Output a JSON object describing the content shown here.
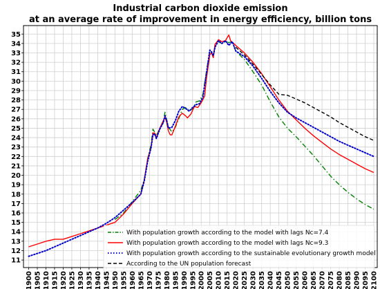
{
  "chart_data": {
    "type": "line",
    "title": [
      "Industrial carbon dioxide emission",
      "at an average rate of improvement in energy efficiency, billion tons"
    ],
    "xlabel": "",
    "ylabel": "",
    "xlim": [
      1897,
      2102
    ],
    "ylim": [
      10.2,
      35.9
    ],
    "x_ticks": [
      1900,
      1905,
      1910,
      1915,
      1920,
      1925,
      1930,
      1935,
      1940,
      1945,
      1950,
      1955,
      1960,
      1965,
      1970,
      1975,
      1980,
      1985,
      1990,
      1995,
      2000,
      2005,
      2010,
      2015,
      2020,
      2025,
      2030,
      2035,
      2040,
      2045,
      2050,
      2055,
      2060,
      2065,
      2070,
      2075,
      2080,
      2085,
      2090,
      2095,
      2100
    ],
    "y_ticks": [
      11,
      12,
      13,
      14,
      15,
      16,
      17,
      18,
      19,
      20,
      21,
      22,
      23,
      24,
      25,
      26,
      27,
      28,
      29,
      30,
      31,
      32,
      33,
      34,
      35
    ],
    "grid": true,
    "legend_position": "bottom-right",
    "series": [
      {
        "name": "With population growth according to the model with lags Nc=7.4",
        "color": "#008000",
        "dash": "dashdot",
        "points": [
          [
            1950,
            15.3
          ],
          [
            1955,
            16.0
          ],
          [
            1960,
            17.2
          ],
          [
            1965,
            18.4
          ],
          [
            1967,
            19.6
          ],
          [
            1969,
            21.8
          ],
          [
            1971,
            23.3
          ],
          [
            1972,
            24.9
          ],
          [
            1973,
            24.6
          ],
          [
            1974,
            24.2
          ],
          [
            1976,
            25.0
          ],
          [
            1978,
            25.6
          ],
          [
            1979,
            26.7
          ],
          [
            1980,
            25.9
          ],
          [
            1981,
            25.1
          ],
          [
            1983,
            24.6
          ],
          [
            1985,
            25.1
          ],
          [
            1987,
            26.0
          ],
          [
            1989,
            27.0
          ],
          [
            1991,
            27.2
          ],
          [
            1993,
            26.9
          ],
          [
            1995,
            27.0
          ],
          [
            1997,
            27.8
          ],
          [
            1999,
            27.9
          ],
          [
            2001,
            28.6
          ],
          [
            2003,
            31.0
          ],
          [
            2005,
            33.2
          ],
          [
            2006,
            33.0
          ],
          [
            2007,
            32.5
          ],
          [
            2008,
            33.8
          ],
          [
            2010,
            34.2
          ],
          [
            2012,
            34.0
          ],
          [
            2014,
            34.2
          ],
          [
            2016,
            34.1
          ],
          [
            2018,
            34.2
          ],
          [
            2020,
            33.2
          ],
          [
            2025,
            32.3
          ],
          [
            2030,
            31.0
          ],
          [
            2035,
            29.6
          ],
          [
            2040,
            27.8
          ],
          [
            2045,
            26.2
          ],
          [
            2050,
            25.0
          ],
          [
            2055,
            24.1
          ],
          [
            2060,
            23.1
          ],
          [
            2065,
            22.1
          ],
          [
            2070,
            21.0
          ],
          [
            2075,
            19.9
          ],
          [
            2080,
            19.0
          ],
          [
            2085,
            18.2
          ],
          [
            2090,
            17.5
          ],
          [
            2095,
            16.9
          ],
          [
            2100,
            16.4
          ]
        ]
      },
      {
        "name": "With population growth according to the model with lags  Nc=9.3",
        "color": "#ff0000",
        "dash": "solid",
        "points": [
          [
            1900,
            12.4
          ],
          [
            1905,
            12.7
          ],
          [
            1910,
            13.0
          ],
          [
            1915,
            13.2
          ],
          [
            1920,
            13.2
          ],
          [
            1925,
            13.5
          ],
          [
            1930,
            13.8
          ],
          [
            1935,
            14.1
          ],
          [
            1940,
            14.4
          ],
          [
            1945,
            14.7
          ],
          [
            1950,
            15.0
          ],
          [
            1955,
            15.9
          ],
          [
            1960,
            17.0
          ],
          [
            1965,
            18.0
          ],
          [
            1967,
            19.5
          ],
          [
            1969,
            21.8
          ],
          [
            1971,
            23.0
          ],
          [
            1972,
            24.5
          ],
          [
            1973,
            24.5
          ],
          [
            1974,
            24.0
          ],
          [
            1976,
            25.0
          ],
          [
            1978,
            25.8
          ],
          [
            1979,
            26.2
          ],
          [
            1980,
            25.6
          ],
          [
            1981,
            24.7
          ],
          [
            1982,
            24.3
          ],
          [
            1983,
            24.3
          ],
          [
            1985,
            25.2
          ],
          [
            1987,
            26.2
          ],
          [
            1989,
            26.6
          ],
          [
            1991,
            26.3
          ],
          [
            1992,
            26.1
          ],
          [
            1994,
            26.5
          ],
          [
            1996,
            27.3
          ],
          [
            1998,
            27.2
          ],
          [
            2000,
            27.7
          ],
          [
            2002,
            28.4
          ],
          [
            2003,
            30.2
          ],
          [
            2005,
            32.8
          ],
          [
            2006,
            33.0
          ],
          [
            2007,
            32.5
          ],
          [
            2008,
            33.9
          ],
          [
            2010,
            34.4
          ],
          [
            2012,
            34.2
          ],
          [
            2014,
            34.3
          ],
          [
            2016,
            34.9
          ],
          [
            2017,
            34.3
          ],
          [
            2020,
            33.8
          ],
          [
            2025,
            33.0
          ],
          [
            2030,
            32.0
          ],
          [
            2035,
            30.8
          ],
          [
            2040,
            29.4
          ],
          [
            2045,
            28.0
          ],
          [
            2050,
            26.8
          ],
          [
            2055,
            25.9
          ],
          [
            2060,
            25.0
          ],
          [
            2065,
            24.2
          ],
          [
            2070,
            23.5
          ],
          [
            2075,
            22.8
          ],
          [
            2080,
            22.2
          ],
          [
            2085,
            21.7
          ],
          [
            2090,
            21.2
          ],
          [
            2095,
            20.7
          ],
          [
            2100,
            20.3
          ]
        ]
      },
      {
        "name": "With population growth according to the sustainable evolutionary growth model",
        "color": "#0000cc",
        "dash": "dotted",
        "points": [
          [
            1900,
            11.4
          ],
          [
            1905,
            11.7
          ],
          [
            1910,
            12.0
          ],
          [
            1915,
            12.4
          ],
          [
            1920,
            12.8
          ],
          [
            1925,
            13.2
          ],
          [
            1930,
            13.6
          ],
          [
            1935,
            14.0
          ],
          [
            1940,
            14.4
          ],
          [
            1945,
            14.9
          ],
          [
            1950,
            15.5
          ],
          [
            1955,
            16.3
          ],
          [
            1960,
            17.1
          ],
          [
            1965,
            18.0
          ],
          [
            1967,
            19.4
          ],
          [
            1969,
            21.5
          ],
          [
            1971,
            23.0
          ],
          [
            1972,
            24.3
          ],
          [
            1973,
            24.4
          ],
          [
            1974,
            23.9
          ],
          [
            1976,
            24.9
          ],
          [
            1978,
            25.6
          ],
          [
            1979,
            26.3
          ],
          [
            1980,
            25.8
          ],
          [
            1981,
            25.0
          ],
          [
            1983,
            25.1
          ],
          [
            1985,
            25.8
          ],
          [
            1987,
            26.8
          ],
          [
            1989,
            27.3
          ],
          [
            1991,
            27.1
          ],
          [
            1993,
            26.8
          ],
          [
            1995,
            27.2
          ],
          [
            1997,
            27.5
          ],
          [
            1999,
            27.6
          ],
          [
            2001,
            28.3
          ],
          [
            2003,
            30.8
          ],
          [
            2005,
            33.3
          ],
          [
            2006,
            33.1
          ],
          [
            2007,
            32.7
          ],
          [
            2008,
            33.6
          ],
          [
            2010,
            34.3
          ],
          [
            2012,
            34.0
          ],
          [
            2014,
            34.3
          ],
          [
            2016,
            33.8
          ],
          [
            2018,
            34.2
          ],
          [
            2020,
            33.2
          ],
          [
            2025,
            32.6
          ],
          [
            2030,
            31.6
          ],
          [
            2035,
            30.3
          ],
          [
            2040,
            28.9
          ],
          [
            2045,
            27.7
          ],
          [
            2050,
            26.7
          ],
          [
            2055,
            26.1
          ],
          [
            2060,
            25.6
          ],
          [
            2065,
            25.1
          ],
          [
            2070,
            24.6
          ],
          [
            2075,
            24.1
          ],
          [
            2080,
            23.6
          ],
          [
            2085,
            23.2
          ],
          [
            2090,
            22.8
          ],
          [
            2095,
            22.4
          ],
          [
            2100,
            22.0
          ]
        ]
      },
      {
        "name": "According to the UN population forecast",
        "color": "#000000",
        "dash": "dashed",
        "points": [
          [
            2020,
            33.6
          ],
          [
            2025,
            32.8
          ],
          [
            2030,
            31.8
          ],
          [
            2035,
            30.7
          ],
          [
            2040,
            29.6
          ],
          [
            2045,
            28.6
          ],
          [
            2050,
            28.5
          ],
          [
            2055,
            28.1
          ],
          [
            2060,
            27.7
          ],
          [
            2065,
            27.2
          ],
          [
            2070,
            26.7
          ],
          [
            2075,
            26.2
          ],
          [
            2080,
            25.6
          ],
          [
            2085,
            25.1
          ],
          [
            2090,
            24.6
          ],
          [
            2095,
            24.1
          ],
          [
            2100,
            23.7
          ]
        ]
      }
    ]
  }
}
